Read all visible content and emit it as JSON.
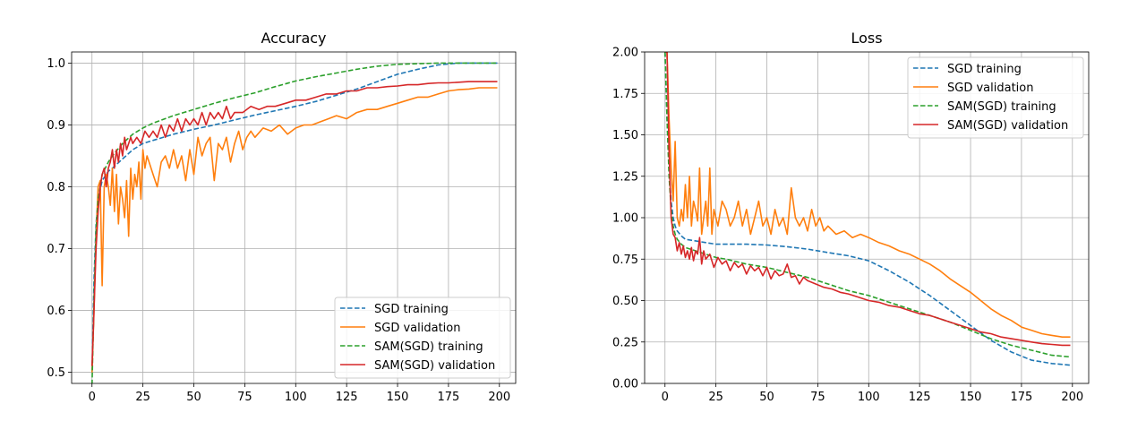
{
  "chart_data": [
    {
      "type": "line",
      "title": "Accuracy",
      "xlabel": "",
      "ylabel": "",
      "xlim": [
        -10,
        208
      ],
      "ylim": [
        0.482,
        1.018
      ],
      "xticks": [
        0,
        25,
        50,
        75,
        100,
        125,
        150,
        175,
        200
      ],
      "xtick_labels": [
        "0",
        "25",
        "50",
        "75",
        "100",
        "125",
        "150",
        "175",
        "200"
      ],
      "yticks": [
        0.5,
        0.6,
        0.7,
        0.8,
        0.9,
        1.0
      ],
      "ytick_labels": [
        "0.5",
        "0.6",
        "0.7",
        "0.8",
        "0.9",
        "1.0"
      ],
      "grid": true,
      "legend_position": "lower right",
      "series": [
        {
          "name": "SGD training",
          "color": "#1f77b4",
          "dashed": true,
          "x": [
            0,
            1,
            2,
            3,
            5,
            8,
            10,
            15,
            20,
            25,
            30,
            40,
            50,
            60,
            70,
            80,
            90,
            100,
            110,
            120,
            130,
            140,
            150,
            160,
            170,
            180,
            190,
            199
          ],
          "y": [
            0.5,
            0.65,
            0.74,
            0.78,
            0.81,
            0.825,
            0.83,
            0.845,
            0.86,
            0.87,
            0.875,
            0.885,
            0.893,
            0.9,
            0.908,
            0.916,
            0.923,
            0.93,
            0.938,
            0.948,
            0.958,
            0.97,
            0.982,
            0.99,
            0.997,
            1.0,
            1.0,
            1.0
          ]
        },
        {
          "name": "SGD validation",
          "color": "#ff7f0e",
          "dashed": false,
          "x": [
            0,
            1,
            2,
            3,
            4,
            5,
            6,
            7,
            8,
            9,
            10,
            11,
            12,
            13,
            14,
            15,
            16,
            17,
            18,
            19,
            20,
            21,
            22,
            23,
            24,
            25,
            26,
            27,
            28,
            30,
            32,
            34,
            36,
            38,
            40,
            42,
            44,
            46,
            48,
            50,
            52,
            54,
            56,
            58,
            60,
            62,
            64,
            66,
            68,
            70,
            72,
            74,
            76,
            78,
            80,
            84,
            88,
            92,
            96,
            100,
            104,
            108,
            112,
            116,
            120,
            125,
            130,
            135,
            140,
            145,
            150,
            155,
            160,
            165,
            170,
            175,
            180,
            185,
            190,
            195,
            199
          ],
          "y": [
            0.5,
            0.6,
            0.72,
            0.8,
            0.81,
            0.64,
            0.8,
            0.82,
            0.8,
            0.77,
            0.83,
            0.76,
            0.82,
            0.74,
            0.8,
            0.78,
            0.75,
            0.81,
            0.72,
            0.83,
            0.78,
            0.82,
            0.8,
            0.84,
            0.78,
            0.86,
            0.83,
            0.85,
            0.84,
            0.82,
            0.8,
            0.84,
            0.85,
            0.83,
            0.86,
            0.83,
            0.85,
            0.81,
            0.86,
            0.82,
            0.88,
            0.85,
            0.87,
            0.88,
            0.81,
            0.87,
            0.86,
            0.88,
            0.84,
            0.87,
            0.89,
            0.86,
            0.88,
            0.89,
            0.88,
            0.895,
            0.89,
            0.9,
            0.885,
            0.895,
            0.9,
            0.9,
            0.905,
            0.91,
            0.915,
            0.91,
            0.92,
            0.925,
            0.925,
            0.93,
            0.935,
            0.94,
            0.945,
            0.945,
            0.95,
            0.955,
            0.957,
            0.958,
            0.96,
            0.96,
            0.96
          ]
        },
        {
          "name": "SAM(SGD) training",
          "color": "#2ca02c",
          "dashed": true,
          "x": [
            0,
            1,
            2,
            3,
            5,
            8,
            10,
            15,
            20,
            25,
            30,
            40,
            50,
            60,
            70,
            80,
            90,
            100,
            110,
            120,
            130,
            140,
            150,
            160,
            170,
            180,
            190,
            199
          ],
          "y": [
            0.48,
            0.62,
            0.73,
            0.78,
            0.82,
            0.84,
            0.85,
            0.87,
            0.885,
            0.895,
            0.903,
            0.915,
            0.925,
            0.935,
            0.944,
            0.952,
            0.962,
            0.971,
            0.978,
            0.984,
            0.99,
            0.995,
            0.998,
            0.999,
            1.0,
            1.0,
            1.0,
            1.0
          ]
        },
        {
          "name": "SAM(SGD) validation",
          "color": "#d62728",
          "dashed": false,
          "x": [
            0,
            1,
            2,
            3,
            4,
            5,
            6,
            7,
            8,
            9,
            10,
            11,
            12,
            13,
            14,
            15,
            16,
            17,
            18,
            19,
            20,
            22,
            24,
            26,
            28,
            30,
            32,
            34,
            36,
            38,
            40,
            42,
            44,
            46,
            48,
            50,
            52,
            54,
            56,
            58,
            60,
            62,
            64,
            66,
            68,
            70,
            74,
            78,
            82,
            86,
            90,
            95,
            100,
            105,
            110,
            115,
            120,
            125,
            130,
            135,
            140,
            145,
            150,
            155,
            160,
            165,
            170,
            175,
            180,
            185,
            190,
            195,
            199
          ],
          "y": [
            0.51,
            0.6,
            0.7,
            0.76,
            0.8,
            0.82,
            0.83,
            0.8,
            0.83,
            0.84,
            0.86,
            0.83,
            0.86,
            0.84,
            0.87,
            0.85,
            0.88,
            0.86,
            0.87,
            0.88,
            0.87,
            0.88,
            0.87,
            0.89,
            0.88,
            0.89,
            0.88,
            0.9,
            0.88,
            0.9,
            0.89,
            0.91,
            0.89,
            0.91,
            0.9,
            0.91,
            0.9,
            0.92,
            0.9,
            0.92,
            0.91,
            0.92,
            0.91,
            0.93,
            0.91,
            0.92,
            0.92,
            0.93,
            0.925,
            0.93,
            0.93,
            0.935,
            0.94,
            0.94,
            0.945,
            0.95,
            0.95,
            0.955,
            0.955,
            0.96,
            0.96,
            0.962,
            0.963,
            0.965,
            0.965,
            0.967,
            0.968,
            0.968,
            0.969,
            0.97,
            0.97,
            0.97,
            0.97
          ]
        }
      ]
    },
    {
      "type": "line",
      "title": "Loss",
      "xlabel": "",
      "ylabel": "",
      "xlim": [
        -10,
        208
      ],
      "ylim": [
        0.0,
        2.0
      ],
      "xticks": [
        0,
        25,
        50,
        75,
        100,
        125,
        150,
        175,
        200
      ],
      "xtick_labels": [
        "0",
        "25",
        "50",
        "75",
        "100",
        "125",
        "150",
        "175",
        "200"
      ],
      "yticks": [
        0.0,
        0.25,
        0.5,
        0.75,
        1.0,
        1.25,
        1.5,
        1.75,
        2.0
      ],
      "ytick_labels": [
        "0.00",
        "0.25",
        "0.50",
        "0.75",
        "1.00",
        "1.25",
        "1.50",
        "1.75",
        "2.00"
      ],
      "grid": true,
      "legend_position": "upper right",
      "series": [
        {
          "name": "SGD training",
          "color": "#1f77b4",
          "dashed": true,
          "x": [
            0,
            1,
            2,
            3,
            4,
            5,
            6,
            8,
            10,
            15,
            20,
            25,
            30,
            40,
            50,
            60,
            70,
            80,
            90,
            100,
            110,
            120,
            130,
            140,
            150,
            160,
            170,
            180,
            190,
            199
          ],
          "y": [
            2.0,
            1.6,
            1.3,
            1.1,
            1.0,
            0.95,
            0.92,
            0.89,
            0.87,
            0.86,
            0.85,
            0.84,
            0.84,
            0.84,
            0.835,
            0.825,
            0.81,
            0.79,
            0.77,
            0.74,
            0.68,
            0.61,
            0.53,
            0.44,
            0.35,
            0.26,
            0.19,
            0.14,
            0.12,
            0.11
          ]
        },
        {
          "name": "SGD validation",
          "color": "#ff7f0e",
          "dashed": false,
          "x": [
            0,
            1,
            2,
            3,
            4,
            5,
            6,
            7,
            8,
            9,
            10,
            11,
            12,
            13,
            14,
            15,
            16,
            17,
            18,
            19,
            20,
            21,
            22,
            23,
            24,
            25,
            26,
            28,
            30,
            32,
            34,
            36,
            38,
            40,
            42,
            44,
            46,
            48,
            50,
            52,
            54,
            56,
            58,
            60,
            62,
            64,
            66,
            68,
            70,
            72,
            74,
            76,
            78,
            80,
            84,
            88,
            92,
            96,
            100,
            105,
            110,
            115,
            120,
            125,
            130,
            135,
            140,
            145,
            150,
            155,
            160,
            165,
            170,
            175,
            180,
            185,
            190,
            195,
            199
          ],
          "y": [
            2.0,
            2.0,
            1.6,
            1.3,
            1.1,
            1.46,
            1.0,
            0.95,
            1.05,
            0.98,
            1.2,
            1.0,
            1.25,
            0.95,
            1.1,
            1.05,
            0.98,
            1.3,
            0.9,
            1.0,
            1.1,
            0.95,
            1.3,
            0.9,
            1.05,
            1.0,
            0.95,
            1.1,
            1.05,
            0.95,
            1.0,
            1.1,
            0.95,
            1.05,
            0.9,
            1.0,
            1.1,
            0.95,
            1.0,
            0.9,
            1.05,
            0.95,
            1.0,
            0.9,
            1.18,
            1.0,
            0.95,
            1.0,
            0.92,
            1.05,
            0.95,
            1.0,
            0.92,
            0.95,
            0.9,
            0.92,
            0.88,
            0.9,
            0.88,
            0.85,
            0.83,
            0.8,
            0.78,
            0.75,
            0.72,
            0.68,
            0.63,
            0.59,
            0.55,
            0.5,
            0.45,
            0.41,
            0.38,
            0.34,
            0.32,
            0.3,
            0.29,
            0.28,
            0.28
          ]
        },
        {
          "name": "SAM(SGD) training",
          "color": "#2ca02c",
          "dashed": true,
          "x": [
            0,
            1,
            2,
            3,
            4,
            5,
            6,
            8,
            10,
            15,
            20,
            25,
            30,
            40,
            50,
            60,
            70,
            80,
            90,
            100,
            110,
            120,
            130,
            140,
            150,
            160,
            170,
            180,
            190,
            199
          ],
          "y": [
            2.0,
            1.6,
            1.25,
            1.05,
            0.95,
            0.9,
            0.87,
            0.84,
            0.82,
            0.8,
            0.78,
            0.76,
            0.75,
            0.72,
            0.7,
            0.67,
            0.64,
            0.6,
            0.56,
            0.53,
            0.49,
            0.45,
            0.41,
            0.37,
            0.32,
            0.27,
            0.23,
            0.2,
            0.17,
            0.16
          ]
        },
        {
          "name": "SAM(SGD) validation",
          "color": "#d62728",
          "dashed": false,
          "x": [
            0,
            1,
            2,
            3,
            4,
            5,
            6,
            7,
            8,
            9,
            10,
            11,
            12,
            13,
            14,
            15,
            16,
            17,
            18,
            19,
            20,
            22,
            24,
            26,
            28,
            30,
            32,
            34,
            36,
            38,
            40,
            42,
            44,
            46,
            48,
            50,
            52,
            54,
            56,
            58,
            60,
            62,
            64,
            66,
            68,
            70,
            74,
            78,
            82,
            86,
            90,
            95,
            100,
            105,
            110,
            115,
            120,
            125,
            130,
            135,
            140,
            145,
            150,
            155,
            160,
            165,
            170,
            175,
            180,
            185,
            190,
            195,
            199
          ],
          "y": [
            2.0,
            2.0,
            1.4,
            1.0,
            0.9,
            0.88,
            0.8,
            0.85,
            0.78,
            0.83,
            0.76,
            0.8,
            0.75,
            0.82,
            0.74,
            0.8,
            0.78,
            0.88,
            0.72,
            0.8,
            0.75,
            0.78,
            0.7,
            0.76,
            0.72,
            0.74,
            0.68,
            0.73,
            0.7,
            0.72,
            0.66,
            0.71,
            0.68,
            0.7,
            0.65,
            0.7,
            0.63,
            0.68,
            0.65,
            0.66,
            0.72,
            0.64,
            0.65,
            0.6,
            0.64,
            0.62,
            0.6,
            0.58,
            0.57,
            0.55,
            0.54,
            0.52,
            0.5,
            0.49,
            0.47,
            0.46,
            0.44,
            0.42,
            0.41,
            0.39,
            0.37,
            0.35,
            0.33,
            0.31,
            0.3,
            0.28,
            0.27,
            0.26,
            0.25,
            0.24,
            0.235,
            0.23,
            0.23
          ]
        }
      ]
    }
  ]
}
